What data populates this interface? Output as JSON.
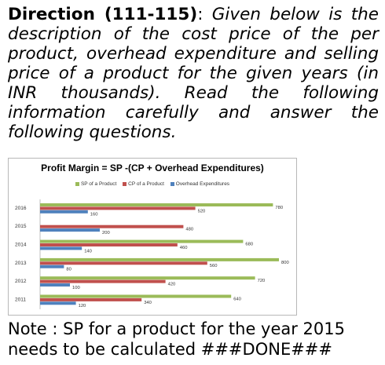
{
  "direction": {
    "prefix": "Direction (111-115)",
    "colon": ": ",
    "body": "Given below is the description of the cost price of the per product, overhead expenditure and selling price of a product for the given years (in INR thousands). Read the following information carefully and answer the following questions."
  },
  "chart_data": {
    "type": "bar",
    "orientation": "horizontal",
    "title": "Profit Margin = SP -(CP + Overhead Expenditures)",
    "legend_position": "top",
    "categories": [
      "2016",
      "2015",
      "2014",
      "2013",
      "2012",
      "2011"
    ],
    "series": [
      {
        "name": "SP of a Product",
        "color": "#9bbb59",
        "values": [
          780,
          null,
          680,
          800,
          720,
          640
        ]
      },
      {
        "name": "CP of a Product",
        "color": "#c0504d",
        "values": [
          520,
          480,
          460,
          560,
          420,
          340
        ]
      },
      {
        "name": "Overhead Expenditures",
        "color": "#4f81bd",
        "values": [
          160,
          200,
          140,
          80,
          100,
          120
        ]
      }
    ],
    "xlim": [
      0,
      800
    ],
    "grid": false
  },
  "note": {
    "text": "Note : SP for a product for the year 2015 needs to be calculated ###DONE###"
  }
}
